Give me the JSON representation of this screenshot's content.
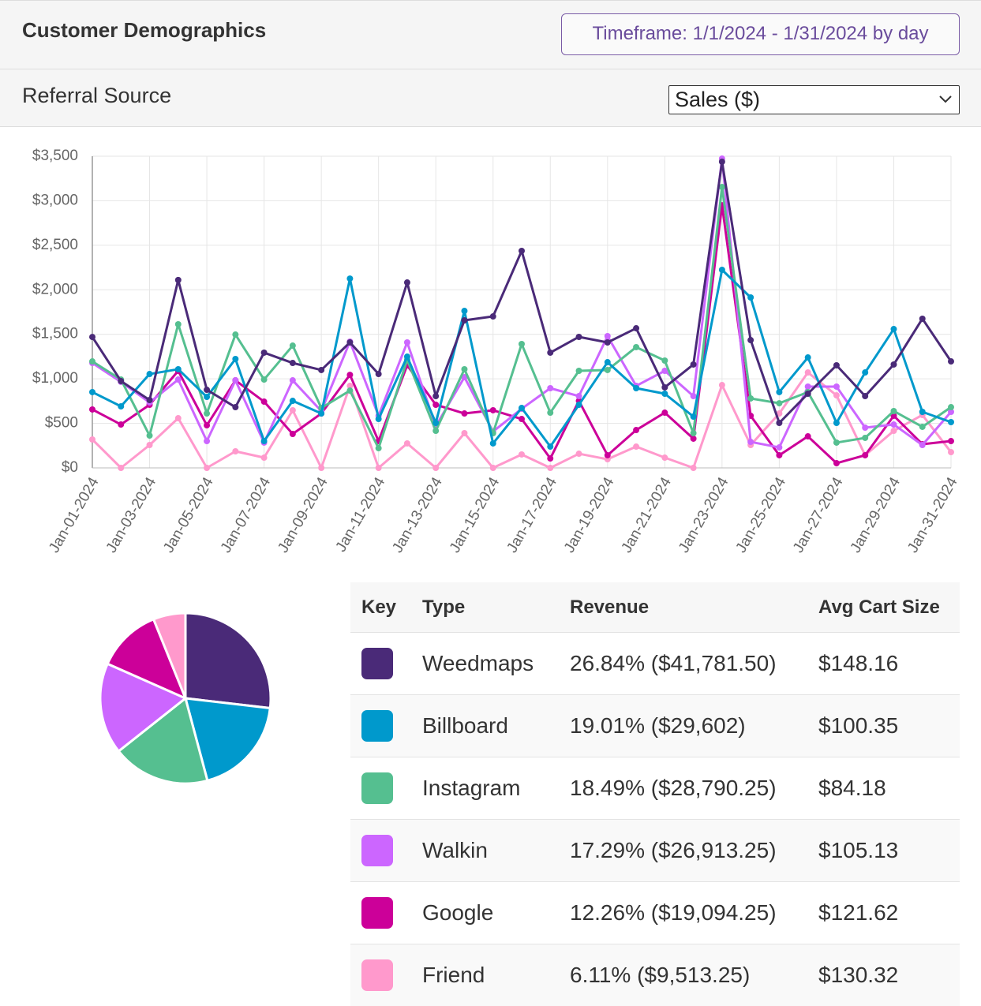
{
  "header": {
    "title": "Customer Demographics",
    "timeframe": "Timeframe: 1/1/2024 - 1/31/2024 by day"
  },
  "subheader": {
    "title": "Referral Source",
    "select": "Sales ($)"
  },
  "chart_data": [
    {
      "type": "line",
      "categories": [
        "Jan-01-2024",
        null,
        "Jan-03-2024",
        null,
        "Jan-05-2024",
        null,
        "Jan-07-2024",
        null,
        "Jan-09-2024",
        null,
        "Jan-11-2024",
        null,
        "Jan-13-2024",
        null,
        "Jan-15-2024",
        null,
        "Jan-17-2024",
        null,
        "Jan-19-2024",
        null,
        "Jan-21-2024",
        null,
        "Jan-23-2024",
        null,
        "Jan-25-2024",
        null,
        "Jan-27-2024",
        null,
        "Jan-29-2024",
        null,
        "Jan-31-2024"
      ],
      "ylim": [
        0,
        3500
      ],
      "yticks": [
        {
          "value": 0,
          "label": "$0"
        },
        {
          "value": 500,
          "label": "$500"
        },
        {
          "value": 1000,
          "label": "$1,000"
        },
        {
          "value": 1500,
          "label": "$1,500"
        },
        {
          "value": 2000,
          "label": "$2,000"
        },
        {
          "value": 2500,
          "label": "$2,500"
        },
        {
          "value": 3000,
          "label": "$3,000"
        },
        {
          "value": 3500,
          "label": "$3,500"
        }
      ],
      "grid": true,
      "series": [
        {
          "name": "Weedmaps",
          "color": "#4a2a78",
          "values": [
            1470,
            975,
            762,
            2110,
            877,
            682,
            1294,
            1178,
            1099,
            1409,
            1054,
            2082,
            806,
            1657,
            1701,
            2437,
            1294,
            1471,
            1409,
            1568,
            904,
            1161,
            3438,
            1435,
            505,
            833,
            1152,
            806,
            1161,
            1675,
            1196
          ]
        },
        {
          "name": "Billboard",
          "color": "#0099cc",
          "values": [
            851,
            691,
            1054,
            1108,
            797,
            1223,
            301,
            753,
            611,
            2126,
            549,
            1249,
            505,
            1763,
            275,
            673,
            239,
            709,
            1187,
            895,
            833,
            576,
            2224,
            1914,
            851,
            1240,
            505,
            1072,
            1559,
            629,
            514
          ]
        },
        {
          "name": "Instagram",
          "color": "#55bf90",
          "values": [
            1196,
            992,
            363,
            1613,
            611,
            1497,
            992,
            1373,
            673,
            868,
            221,
            1214,
            416,
            1108,
            390,
            1391,
            620,
            1090,
            1099,
            1356,
            1205,
            390,
            3154,
            780,
            726,
            851,
            284,
            337,
            638,
            461,
            682
          ]
        },
        {
          "name": "Walkin",
          "color": "#cc66ff",
          "values": [
            1178,
            966,
            735,
            992,
            301,
            983,
            284,
            983,
            638,
            1418,
            585,
            1409,
            470,
            1019,
            408,
            664,
            895,
            806,
            1480,
            921,
            1090,
            806,
            3473,
            292,
            230,
            913,
            913,
            452,
            487,
            257,
            629
          ]
        },
        {
          "name": "Google",
          "color": "#cc0099",
          "values": [
            656,
            487,
            709,
            1090,
            478,
            983,
            744,
            381,
            611,
            1045,
            301,
            1152,
            709,
            611,
            647,
            549,
            106,
            753,
            142,
            425,
            620,
            328,
            2950,
            585,
            142,
            354,
            53,
            142,
            585,
            266,
            301
          ]
        },
        {
          "name": "Friend",
          "color": "#ff99cc",
          "values": [
            319,
            0,
            257,
            558,
            0,
            186,
            115,
            647,
            0,
            921,
            0,
            275,
            0,
            390,
            0,
            151,
            0,
            159,
            97,
            239,
            115,
            0,
            930,
            257,
            611,
            1072,
            815,
            142,
            416,
            594,
            177
          ]
        }
      ]
    },
    {
      "type": "pie",
      "values": [
        26.84,
        19.01,
        18.49,
        17.29,
        12.26,
        6.11
      ],
      "colors": [
        "#4a2a78",
        "#0099cc",
        "#55bf90",
        "#cc66ff",
        "#cc0099",
        "#ff99cc"
      ]
    }
  ],
  "table": {
    "columns": [
      "Key",
      "Type",
      "Revenue",
      "Avg Cart Size"
    ],
    "rows": [
      [
        "26.84% ($41,781.50)",
        "$148.16"
      ],
      [
        "19.01% ($29,602)",
        "$100.35"
      ],
      [
        "18.49% ($28,790.25)",
        "$84.18"
      ],
      [
        "17.29% ($26,913.25)",
        "$105.13"
      ],
      [
        "12.26% ($19,094.25)",
        "$121.62"
      ],
      [
        "6.11% ($9,513.25)",
        "$130.32"
      ]
    ]
  }
}
